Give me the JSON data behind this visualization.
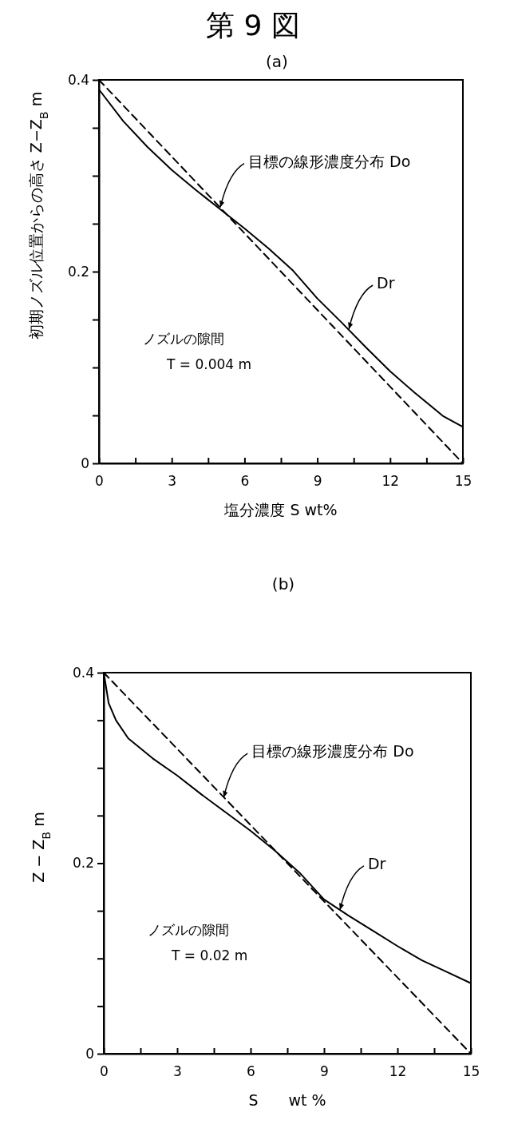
{
  "chart_data": [
    {
      "type": "line",
      "title": "第 9 図",
      "subtitle": "(a)",
      "xlabel": "塩分濃度 S wt%",
      "ylabel": "初期ノズル位置からの高さ Z−Z$_{B}$ m",
      "xlim": [
        0,
        15
      ],
      "ylim": [
        0,
        0.4
      ],
      "xticks": [
        0,
        {
          "value": 1.5,
          "label": null
        },
        3,
        {
          "value": 4.5,
          "label": null
        },
        6,
        {
          "value": 7.5,
          "label": null
        },
        9,
        {
          "value": 10.5,
          "label": null
        },
        12,
        {
          "value": 13.5,
          "label": null
        },
        15
      ],
      "yticks": [
        0,
        {
          "value": 0.05,
          "label": null
        },
        {
          "value": 0.1,
          "label": null
        },
        {
          "value": 0.15,
          "label": null
        },
        0.2,
        {
          "value": 0.25,
          "label": null
        },
        {
          "value": 0.3,
          "label": null
        },
        {
          "value": 0.35,
          "label": null
        },
        0.4
      ],
      "series": [
        {
          "color": "#000000",
          "line_style": "dashed",
          "x": [
            0,
            15
          ],
          "values": [
            0.4,
            0
          ]
        },
        {
          "color": "#000000",
          "line_style": "solid",
          "x": [
            0,
            1,
            2,
            3,
            4,
            5,
            6,
            7,
            8,
            9,
            10,
            11,
            12,
            13,
            14.2,
            15
          ],
          "values": [
            0.39,
            0.357,
            0.33,
            0.306,
            0.285,
            0.265,
            0.245,
            0.224,
            0.201,
            0.172,
            0.147,
            0.121,
            0.096,
            0.074,
            0.049,
            0.038
          ]
        }
      ],
      "annotations": [
        {
          "text": "目標の線形濃度分布 Do",
          "x": 5,
          "y": 0.267
        },
        {
          "text": "Dr",
          "x": 10.3,
          "y": 0.14
        },
        "ノズルの隙間",
        "T = 0.004 m"
      ],
      "grid": false,
      "marker": "none"
    },
    {
      "type": "line",
      "subtitle": "(b)",
      "xlabel": "S　　wt %",
      "ylabel": "Z − Z$_{B}$ m",
      "xlim": [
        0,
        15
      ],
      "ylim": [
        0,
        0.4
      ],
      "xticks": [
        0,
        {
          "value": 1.5,
          "label": null
        },
        3,
        {
          "value": 4.5,
          "label": null
        },
        6,
        {
          "value": 7.5,
          "label": null
        },
        9,
        {
          "value": 10.5,
          "label": null
        },
        12,
        {
          "value": 13.5,
          "label": null
        },
        15
      ],
      "yticks": [
        0,
        {
          "value": 0.05,
          "label": null
        },
        {
          "value": 0.1,
          "label": null
        },
        {
          "value": 0.15,
          "label": null
        },
        0.2,
        {
          "value": 0.25,
          "label": null
        },
        {
          "value": 0.3,
          "label": null
        },
        {
          "value": 0.35,
          "label": null
        },
        0.4
      ],
      "series": [
        {
          "color": "#000000",
          "line_style": "dashed",
          "x": [
            0,
            15
          ],
          "values": [
            0.4,
            0
          ]
        },
        {
          "color": "#000000",
          "line_style": "solid",
          "x": [
            0,
            0.2,
            0.5,
            1,
            2,
            3,
            4,
            5,
            6,
            7,
            8,
            9,
            10,
            11,
            12,
            13,
            14,
            15
          ],
          "values": [
            0.4,
            0.368,
            0.35,
            0.331,
            0.31,
            0.292,
            0.272,
            0.253,
            0.234,
            0.213,
            0.19,
            0.162,
            0.145,
            0.129,
            0.113,
            0.098,
            0.086,
            0.074
          ]
        }
      ],
      "annotations": [
        {
          "text": "目標の線形濃度分布 Do",
          "x": 4.9,
          "y": 0.269
        },
        {
          "text": "Dr",
          "x": 9.65,
          "y": 0.151
        },
        "ノズルの隙間",
        "T = 0.02 m"
      ],
      "grid": false,
      "marker": "none"
    }
  ]
}
